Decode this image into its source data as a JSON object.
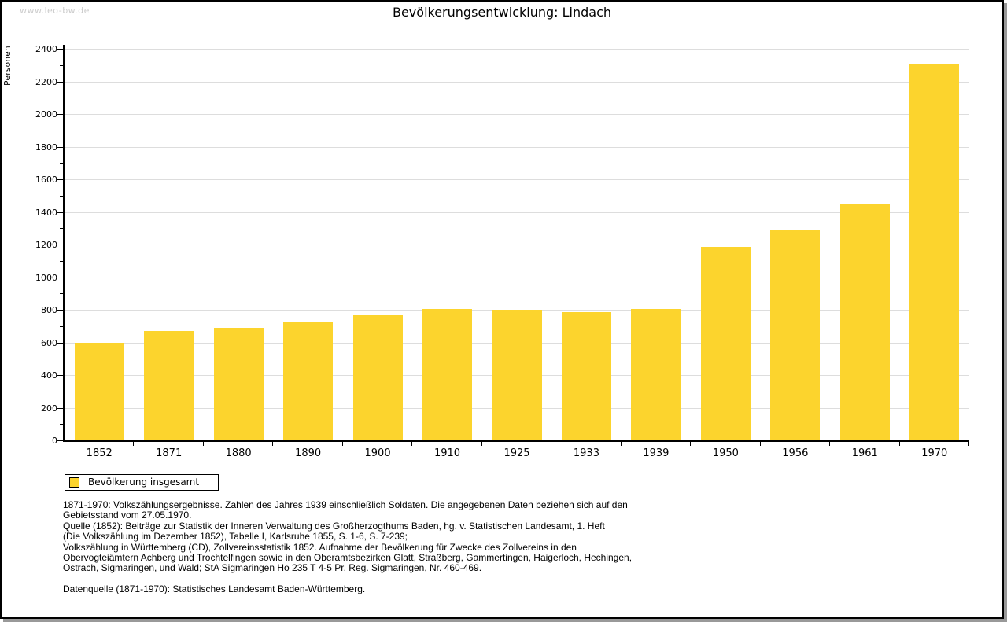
{
  "page": {
    "watermark": "www.leo-bw.de",
    "title": "Bevölkerungsentwicklung: Lindach"
  },
  "chart_data": {
    "type": "bar",
    "title": "Bevölkerungsentwicklung: Lindach",
    "ylabel": "Personen",
    "xlabel": "",
    "categories": [
      "1852",
      "1871",
      "1880",
      "1890",
      "1900",
      "1910",
      "1925",
      "1933",
      "1939",
      "1950",
      "1956",
      "1961",
      "1970"
    ],
    "values": [
      600,
      672,
      688,
      721,
      766,
      807,
      799,
      788,
      803,
      1187,
      1288,
      1452,
      2302
    ],
    "ylim": [
      0,
      2400
    ],
    "ytick_step": 200,
    "yminor_step": 100,
    "grid": true,
    "legend_position": "bottom-left",
    "legend": [
      {
        "label": "Bevölkerung insgesamt",
        "color": "#fcd42d"
      }
    ],
    "colors": {
      "bar": "#fcd42d",
      "grid": "#dddddd",
      "axis": "#000000",
      "watermark": "#cccccc"
    }
  },
  "footnotes": {
    "lines": [
      "1871-1970: Volkszählungsergebnisse. Zahlen des Jahres 1939 einschließlich Soldaten. Die angegebenen Daten beziehen sich auf den",
      "Gebietsstand vom 27.05.1970.",
      "Quelle (1852): Beiträge zur Statistik der Inneren Verwaltung des Großherzogthums Baden, hg. v. Statistischen Landesamt, 1. Heft",
      "(Die Volkszählung im Dezember 1852), Tabelle I, Karlsruhe 1855, S. 1-6, S. 7-239;",
      "Volkszählung in Württemberg (CD), Zollvereinsstatistik 1852. Aufnahme der Bevölkerung für Zwecke des Zollvereins in den",
      "Obervogteiämtern Achberg und Trochtelfingen sowie in den Oberamtsbezirken Glatt, Straßberg, Gammertingen, Haigerloch, Hechingen,",
      "Ostrach, Sigmaringen, und Wald; StA Sigmaringen Ho 235 T 4-5 Pr. Reg. Sigmaringen, Nr. 460-469."
    ],
    "datasource": "Datenquelle (1871-1970): Statistisches Landesamt Baden-Württemberg."
  }
}
